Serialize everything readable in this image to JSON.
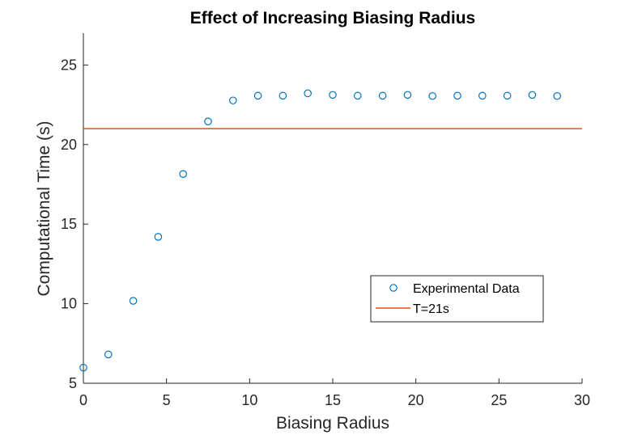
{
  "chart_data": {
    "type": "scatter",
    "title": "Effect of Increasing Biasing Radius",
    "xlabel": "Biasing Radius",
    "ylabel": "Computational Time (s)",
    "xlim": [
      0,
      30
    ],
    "ylim": [
      5,
      27
    ],
    "xticks": [
      0,
      5,
      10,
      15,
      20,
      25,
      30
    ],
    "yticks": [
      5,
      10,
      15,
      20,
      25
    ],
    "grid": false,
    "legend_position": "middle-right",
    "series": [
      {
        "name": "Experimental Data",
        "kind": "scatter",
        "marker": "open-circle",
        "color": "#0072BD",
        "x": [
          0,
          1.5,
          3,
          4.5,
          6,
          7.5,
          9,
          10.5,
          12,
          13.5,
          15,
          16.5,
          18,
          19.5,
          21,
          22.5,
          24,
          25.5,
          27,
          28.5
        ],
        "y": [
          5.98,
          6.81,
          10.18,
          14.2,
          18.15,
          21.45,
          22.77,
          23.07,
          23.07,
          23.22,
          23.12,
          23.07,
          23.07,
          23.12,
          23.05,
          23.07,
          23.07,
          23.07,
          23.12,
          23.05
        ]
      },
      {
        "name": "T=21s",
        "kind": "hline",
        "color": "#D95319",
        "y": 21
      }
    ]
  }
}
